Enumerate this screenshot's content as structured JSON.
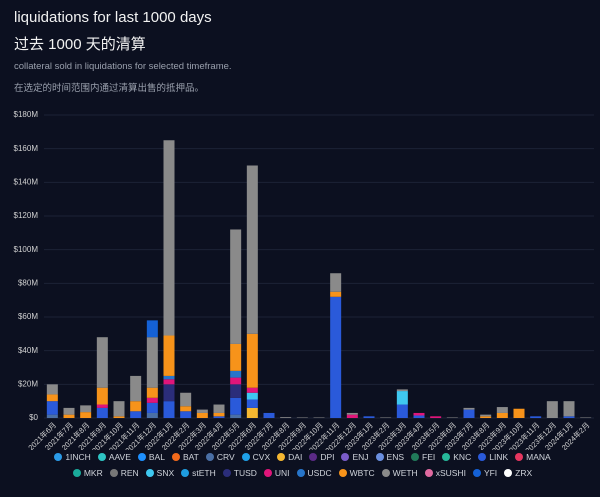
{
  "chart_data": {
    "type": "bar",
    "stacked": true,
    "title": "liquidations for last 1000 days",
    "title_zh": "过去 1000 天的清算",
    "subtitle": "collateral sold in liquidations for selected timeframe.",
    "subtitle_zh": "在选定的时间范围内通过清算出售的抵押品。",
    "categories": [
      "2021年6月",
      "2021年7月",
      "2021年8月",
      "2021年9月",
      "2021年10月",
      "2021年11月",
      "2021年12月",
      "2022年1月",
      "2022年2月",
      "2022年3月",
      "2022年4月",
      "2022年5月",
      "2022年6月",
      "2022年7月",
      "2022年8月",
      "2022年9月",
      "2022年10月",
      "2022年11月",
      "2022年12月",
      "2023年1月",
      "2023年2月",
      "2023年3月",
      "2023年4月",
      "2023年5月",
      "2023年6月",
      "2023年7月",
      "2023年8月",
      "2023年9月",
      "2023年10月",
      "2023年11月",
      "2023年12月",
      "2024年1月",
      "2024年2月"
    ],
    "ylim": [
      0,
      180
    ],
    "yticks": [
      {
        "value": 0,
        "label": "$0"
      },
      {
        "value": 20,
        "label": "$20M"
      },
      {
        "value": 40,
        "label": "$40M"
      },
      {
        "value": 60,
        "label": "$60M"
      },
      {
        "value": 80,
        "label": "$80M"
      },
      {
        "value": 100,
        "label": "$100M"
      },
      {
        "value": 120,
        "label": "$120M"
      },
      {
        "value": 140,
        "label": "$140M"
      },
      {
        "value": 160,
        "label": "$160M"
      },
      {
        "value": 180,
        "label": "$180M"
      }
    ],
    "grid": true,
    "series": [
      {
        "name": "1INCH",
        "color": "#2b9be8",
        "values": [
          0,
          0,
          0,
          0,
          0,
          0,
          0,
          0,
          0,
          0,
          0,
          0,
          0,
          0,
          0,
          0,
          0,
          0,
          0,
          0,
          0,
          0,
          0,
          0,
          0,
          0,
          0,
          0,
          0,
          0,
          0,
          0,
          0
        ]
      },
      {
        "name": "AAVE",
        "color": "#2ec4c4",
        "values": [
          0,
          0,
          0,
          0,
          0,
          0,
          0,
          0,
          0,
          0,
          0,
          0,
          0,
          0,
          0,
          0,
          0,
          0,
          0,
          0,
          0,
          0,
          0,
          0,
          0,
          0,
          0,
          0,
          0,
          0,
          0,
          0,
          0
        ]
      },
      {
        "name": "BAL",
        "color": "#1e90ff",
        "values": [
          0,
          0,
          0,
          0,
          0,
          0,
          0,
          0,
          0,
          0,
          0,
          0,
          0,
          0,
          0,
          0,
          0,
          0,
          0,
          0,
          0,
          0,
          0,
          0,
          0,
          0,
          0,
          0,
          0,
          0,
          0,
          0,
          0
        ]
      },
      {
        "name": "BAT",
        "color": "#f26a1b",
        "values": [
          0,
          0,
          0,
          0,
          0,
          0,
          0,
          0,
          0,
          0,
          0,
          0,
          0,
          0,
          0,
          0,
          0,
          0,
          0,
          0,
          0,
          0,
          0,
          0,
          0,
          0,
          0,
          0,
          0,
          0,
          0,
          0,
          0
        ]
      },
      {
        "name": "CRV",
        "color": "#4a6fa5",
        "values": [
          2,
          0,
          0,
          0,
          0,
          0,
          3,
          0,
          0,
          0,
          0,
          2,
          0,
          0,
          0,
          0,
          0,
          0,
          0,
          0,
          0,
          0,
          0,
          0,
          0,
          0,
          0,
          0,
          0,
          0,
          0,
          0,
          0
        ]
      },
      {
        "name": "CVX",
        "color": "#1ea0e8",
        "values": [
          0,
          0,
          0,
          0,
          0,
          0,
          0,
          0,
          0,
          0,
          0,
          0,
          0,
          0,
          0,
          0,
          0,
          0,
          0,
          0,
          0,
          0,
          0,
          0,
          0,
          0,
          0,
          0,
          0,
          0,
          0,
          0,
          0
        ]
      },
      {
        "name": "DAI",
        "color": "#f5b731",
        "values": [
          0,
          0,
          0,
          0,
          0,
          0,
          0,
          0,
          0,
          0,
          0,
          0,
          6,
          0,
          0,
          0,
          0,
          0,
          0,
          0,
          0,
          0,
          0,
          0,
          0,
          0,
          0,
          0,
          0,
          0,
          0,
          0,
          0
        ]
      },
      {
        "name": "DPI",
        "color": "#5b2a86",
        "values": [
          0,
          0,
          0,
          0,
          0,
          0,
          0,
          0,
          0,
          0,
          0,
          0,
          0,
          0,
          0,
          0,
          0,
          0,
          0,
          0,
          0,
          0,
          0,
          0,
          0,
          0,
          0,
          0,
          0,
          0,
          0,
          0,
          0
        ]
      },
      {
        "name": "ENJ",
        "color": "#7a5cc9",
        "values": [
          0,
          0,
          0,
          0,
          0,
          0,
          0,
          0,
          0,
          0,
          0,
          0,
          0,
          0,
          0,
          0,
          0,
          0,
          0,
          0,
          0,
          0,
          0,
          0,
          0,
          0,
          0,
          0,
          0,
          0,
          0,
          0,
          0
        ]
      },
      {
        "name": "ENS",
        "color": "#6a8fe0",
        "values": [
          0,
          0,
          0,
          0,
          0,
          0,
          0,
          0,
          0,
          0,
          0,
          0,
          0,
          0,
          0,
          0,
          0,
          0,
          0,
          0,
          0,
          0,
          0,
          0,
          0,
          0,
          0,
          0,
          0,
          0,
          0,
          0,
          0
        ]
      },
      {
        "name": "FEI",
        "color": "#217a5a",
        "values": [
          0,
          0,
          0,
          0,
          0,
          0,
          0,
          0,
          0,
          0,
          0,
          0,
          0,
          0,
          0,
          0,
          0,
          0,
          0,
          0,
          0,
          0,
          0,
          0,
          0,
          0,
          0,
          0,
          0,
          0,
          0,
          0,
          0
        ]
      },
      {
        "name": "KNC",
        "color": "#26b89a",
        "values": [
          0,
          0,
          0,
          0,
          0,
          0,
          0,
          0,
          0,
          0,
          0,
          0,
          0,
          0,
          0,
          0,
          0,
          0,
          0,
          0,
          0,
          0,
          0,
          0,
          0,
          0,
          0,
          0,
          0,
          0,
          0,
          0,
          0
        ]
      },
      {
        "name": "LINK",
        "color": "#2a5ada",
        "values": [
          8,
          0,
          0,
          6,
          0,
          4,
          6,
          10,
          4,
          0,
          1,
          10,
          5,
          3,
          0,
          0,
          0,
          72,
          0,
          1,
          0,
          8,
          1.5,
          0,
          0,
          5,
          0,
          0,
          0,
          1,
          0,
          1,
          0
        ]
      },
      {
        "name": "MANA",
        "color": "#e5365f",
        "values": [
          0,
          0,
          0,
          0,
          0,
          0,
          0,
          0,
          0,
          0,
          0,
          0,
          0,
          0,
          0,
          0,
          0,
          0,
          0,
          0,
          0,
          0,
          0,
          0,
          0,
          0,
          0,
          0,
          0,
          0,
          0,
          0,
          0
        ]
      },
      {
        "name": "MKR",
        "color": "#1aab9b",
        "values": [
          0,
          0,
          0,
          0,
          0,
          0,
          0,
          0,
          0,
          0,
          0,
          0,
          0,
          0,
          0,
          0,
          0,
          0,
          0,
          0,
          0,
          0,
          0,
          0,
          0,
          0,
          0,
          0,
          0,
          0,
          0,
          0,
          0
        ]
      },
      {
        "name": "REN",
        "color": "#777777",
        "values": [
          0,
          0,
          0,
          0,
          0,
          0,
          0,
          0,
          0,
          0,
          0,
          0,
          0,
          0,
          0,
          0,
          0,
          0,
          0,
          0,
          0,
          0,
          0,
          0,
          0,
          0,
          0,
          0,
          0,
          0,
          0,
          0,
          0
        ]
      },
      {
        "name": "SNX",
        "color": "#3fc8f0",
        "values": [
          0,
          0,
          0,
          0,
          0,
          0,
          0,
          0,
          0,
          0,
          0,
          0,
          4,
          0,
          0,
          0,
          0,
          0,
          0,
          0,
          0,
          8,
          0,
          0,
          0,
          0,
          0,
          0,
          0,
          0,
          0,
          0,
          0
        ]
      },
      {
        "name": "stETH",
        "color": "#1e9de0",
        "values": [
          0,
          0,
          0,
          0,
          0,
          0,
          0,
          0,
          0,
          0,
          0,
          0,
          0,
          0,
          0,
          0,
          0,
          0,
          0,
          0,
          0,
          0,
          0,
          0,
          0,
          0,
          0,
          0,
          0,
          0,
          0,
          0,
          0
        ]
      },
      {
        "name": "TUSD",
        "color": "#2b2d7a",
        "values": [
          0,
          0,
          0,
          0,
          0,
          0,
          0,
          10,
          0,
          0,
          0,
          8,
          0,
          0,
          0,
          0,
          0,
          0,
          0,
          0,
          0,
          0,
          0,
          0,
          0,
          0,
          0,
          0,
          0,
          0,
          0,
          0,
          0
        ]
      },
      {
        "name": "UNI",
        "color": "#e0157a",
        "values": [
          0,
          0,
          0,
          2,
          0,
          0,
          3,
          3,
          0,
          0,
          0,
          4,
          3,
          0,
          0,
          0,
          0,
          0,
          2,
          0,
          0,
          0,
          1.5,
          1,
          0,
          0,
          0,
          0,
          0,
          0,
          0,
          0,
          0
        ]
      },
      {
        "name": "USDC",
        "color": "#2775ca",
        "values": [
          0,
          0,
          0,
          0,
          0,
          0,
          0,
          2,
          0,
          0,
          0,
          4,
          0,
          0,
          0,
          0,
          0,
          0,
          0,
          0,
          0,
          0,
          0,
          0,
          0,
          0,
          0,
          0,
          0,
          0,
          0,
          0,
          0
        ]
      },
      {
        "name": "WBTC",
        "color": "#f7931a",
        "values": [
          4,
          2,
          3.5,
          10,
          1,
          6,
          6,
          24,
          3,
          3,
          2,
          16,
          32,
          0,
          0,
          0,
          0,
          3,
          0,
          0,
          0,
          0,
          0,
          0,
          0,
          0,
          1,
          3,
          5.5,
          0,
          0,
          0,
          0
        ]
      },
      {
        "name": "WETH",
        "color": "#8a8a8a",
        "values": [
          6,
          4,
          4,
          30,
          9,
          15,
          30,
          116,
          8,
          2,
          5,
          68,
          100,
          0,
          0.5,
          0.3,
          0.3,
          11,
          1,
          0,
          0.3,
          1,
          0,
          0,
          0.3,
          1,
          1,
          3.5,
          0,
          0,
          10,
          9,
          0.3
        ]
      },
      {
        "name": "xSUSHI",
        "color": "#e06aa0",
        "values": [
          0,
          0,
          0,
          0,
          0,
          0,
          0,
          0,
          0,
          0,
          0,
          0,
          0,
          0,
          0,
          0,
          0,
          0,
          0,
          0,
          0,
          0,
          0,
          0,
          0,
          0,
          0,
          0,
          0,
          0,
          0,
          0,
          0
        ]
      },
      {
        "name": "YFI",
        "color": "#1461d6",
        "values": [
          0,
          0,
          0,
          0,
          0,
          0,
          10,
          0,
          0,
          0,
          0,
          0,
          0,
          0,
          0,
          0,
          0,
          0,
          0,
          0,
          0,
          0,
          0,
          0,
          0,
          0,
          0,
          0,
          0,
          0,
          0,
          0,
          0
        ]
      },
      {
        "name": "ZRX",
        "color": "#ffffff",
        "values": [
          0,
          0,
          0,
          0,
          0,
          0,
          0,
          0,
          0,
          0,
          0,
          0,
          0,
          0,
          0,
          0,
          0,
          0,
          0,
          0,
          0,
          0,
          0,
          0,
          0,
          0,
          0,
          0,
          0,
          0,
          0,
          0,
          0
        ]
      }
    ]
  }
}
